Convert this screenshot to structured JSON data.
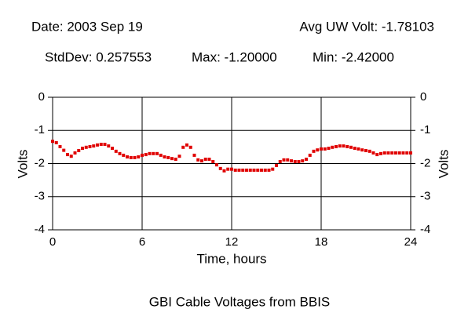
{
  "chart_data": {
    "type": "scatter",
    "title": "GBI Cable Voltages from BBIS",
    "annotations": [
      "Date: 2003 Sep 19",
      "Avg UW Volt: -1.78103",
      "StdDev: 0.257553",
      "Max: -1.20000",
      "Min: -2.42000"
    ],
    "xlabel": "Time, hours",
    "ylabel": "Volts",
    "y2label": "Volts",
    "xlim": [
      0,
      24
    ],
    "xticks": [
      0,
      6,
      12,
      18,
      24
    ],
    "ylim": [
      -4,
      0
    ],
    "yticks": [
      0,
      -1,
      -2,
      -3,
      -4
    ],
    "y2lim": [
      -4,
      0
    ],
    "y2ticks": [
      0,
      -1,
      -2,
      -3,
      -4
    ],
    "grid": true,
    "series": [
      {
        "color": "#e00000",
        "x": [
          0,
          0.25,
          0.5,
          0.75,
          1,
          1.25,
          1.5,
          1.75,
          2,
          2.25,
          2.5,
          2.75,
          3,
          3.25,
          3.5,
          3.75,
          4,
          4.25,
          4.5,
          4.75,
          5,
          5.25,
          5.5,
          5.75,
          6,
          6.25,
          6.5,
          6.75,
          7,
          7.25,
          7.5,
          7.75,
          8,
          8.25,
          8.5,
          8.75,
          9,
          9.25,
          9.5,
          9.75,
          10,
          10.25,
          10.5,
          10.75,
          11,
          11.25,
          11.5,
          11.75,
          12,
          12.25,
          12.5,
          12.75,
          13,
          13.25,
          13.5,
          13.75,
          14,
          14.25,
          14.5,
          14.75,
          15,
          15.25,
          15.5,
          15.75,
          16,
          16.25,
          16.5,
          16.75,
          17,
          17.25,
          17.5,
          17.75,
          18,
          18.25,
          18.5,
          18.75,
          19,
          19.25,
          19.5,
          19.75,
          20,
          20.25,
          20.5,
          20.75,
          21,
          21.25,
          21.5,
          21.75,
          22,
          22.25,
          22.5,
          22.75,
          23,
          23.25,
          23.5,
          23.75,
          24
        ],
        "values": [
          -1.33,
          -1.37,
          -1.49,
          -1.6,
          -1.73,
          -1.78,
          -1.68,
          -1.61,
          -1.54,
          -1.51,
          -1.49,
          -1.47,
          -1.44,
          -1.42,
          -1.42,
          -1.47,
          -1.54,
          -1.63,
          -1.7,
          -1.75,
          -1.8,
          -1.82,
          -1.82,
          -1.8,
          -1.75,
          -1.73,
          -1.7,
          -1.7,
          -1.7,
          -1.75,
          -1.8,
          -1.82,
          -1.85,
          -1.87,
          -1.78,
          -1.51,
          -1.44,
          -1.51,
          -1.75,
          -1.89,
          -1.92,
          -1.87,
          -1.87,
          -1.94,
          -2.04,
          -2.15,
          -2.22,
          -2.17,
          -2.17,
          -2.2,
          -2.2,
          -2.2,
          -2.2,
          -2.2,
          -2.2,
          -2.2,
          -2.2,
          -2.2,
          -2.2,
          -2.17,
          -2.06,
          -1.94,
          -1.89,
          -1.89,
          -1.92,
          -1.94,
          -1.94,
          -1.92,
          -1.87,
          -1.75,
          -1.63,
          -1.59,
          -1.56,
          -1.56,
          -1.54,
          -1.51,
          -1.49,
          -1.47,
          -1.47,
          -1.49,
          -1.51,
          -1.54,
          -1.56,
          -1.59,
          -1.61,
          -1.63,
          -1.68,
          -1.73,
          -1.7,
          -1.68,
          -1.68,
          -1.68,
          -1.68,
          -1.68,
          -1.68,
          -1.68,
          -1.68
        ]
      }
    ]
  }
}
